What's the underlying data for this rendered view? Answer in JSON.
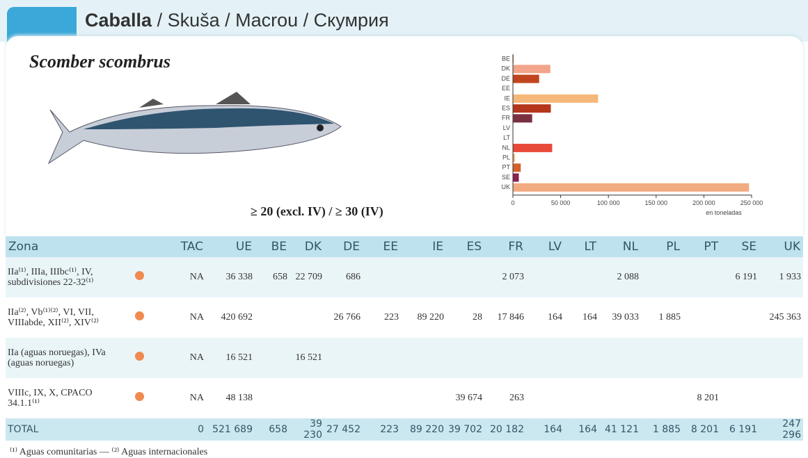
{
  "header": {
    "title": "Caballa",
    "subtitle": "/ Skuša / Macrou / Скумрия"
  },
  "species": "Scomber scombrus",
  "size": "≥ 20 (excl. IV) / ≥ 30 (IV)",
  "chart_data": {
    "type": "bar",
    "orientation": "horizontal",
    "categories": [
      "BE",
      "DK",
      "DE",
      "EE",
      "IE",
      "ES",
      "FR",
      "LV",
      "LT",
      "NL",
      "PL",
      "PT",
      "SE",
      "UK"
    ],
    "values": [
      658,
      39230,
      27452,
      223,
      89220,
      39702,
      20182,
      164,
      164,
      41121,
      1885,
      8201,
      6191,
      247296
    ],
    "colors": [
      "#c0602a",
      "#f2a58a",
      "#c0451e",
      "#3a8a9a",
      "#f5b87a",
      "#b5361c",
      "#7a3040",
      "#c0602a",
      "#c0602a",
      "#e84a3a",
      "#f0a060",
      "#d4602a",
      "#8a2050",
      "#f2ab80"
    ],
    "xlim": [
      0,
      250000
    ],
    "xticks": [
      0,
      {
        "value": 50000,
        "label": "50 000"
      },
      {
        "value": 100000,
        "label": "100 000"
      },
      {
        "value": 150000,
        "label": "150 000"
      },
      {
        "value": 200000,
        "label": "200 000"
      },
      {
        "value": 250000,
        "label": "250 000"
      }
    ],
    "xlabel": "en toneladas"
  },
  "table": {
    "columns": [
      "Zona",
      "TAC",
      "UE",
      "BE",
      "DK",
      "DE",
      "EE",
      "IE",
      "ES",
      "FR",
      "LV",
      "LT",
      "NL",
      "PL",
      "PT",
      "SE",
      "UK"
    ],
    "rows": [
      {
        "zona": "IIa⁽¹⁾, IIIa, IIIbc⁽¹⁾, IV, subdivisiones 22-32⁽¹⁾",
        "cells": [
          "NA",
          "36 338",
          "658",
          "22 709",
          "686",
          null,
          null,
          null,
          "2 073",
          null,
          null,
          "2 088",
          null,
          null,
          "6 191",
          "1 933"
        ]
      },
      {
        "zona": "IIa⁽²⁾, Vb⁽¹⁾⁽²⁾, VI, VII, VIIIabde, XII⁽²⁾, XIV⁽²⁾",
        "cells": [
          "NA",
          "420 692",
          null,
          null,
          "26 766",
          "223",
          "89 220",
          "28",
          "17 846",
          "164",
          "164",
          "39 033",
          "1 885",
          null,
          null,
          "245 363"
        ]
      },
      {
        "zona": "IIa (aguas noruegas), IVa (aguas noruegas)",
        "cells": [
          "NA",
          "16 521",
          null,
          "16 521",
          null,
          null,
          null,
          null,
          null,
          null,
          null,
          null,
          null,
          null,
          null,
          null
        ]
      },
      {
        "zona": "VIIIc, IX, X, CPACO 34.1.1⁽¹⁾",
        "cells": [
          "NA",
          "48 138",
          null,
          null,
          null,
          null,
          null,
          "39 674",
          "263",
          null,
          null,
          null,
          null,
          "8 201",
          null,
          null
        ]
      }
    ],
    "total": {
      "label": "TOTAL",
      "cells": [
        "0",
        "521 689",
        "658",
        "39 230",
        "27 452",
        "223",
        "89 220",
        "39 702",
        "20 182",
        "164",
        "164",
        "41 121",
        "1 885",
        "8 201",
        "6 191",
        "247 296"
      ]
    }
  },
  "footnote": "⁽¹⁾ Aguas comunitarias — ⁽²⁾ Aguas internacionales"
}
